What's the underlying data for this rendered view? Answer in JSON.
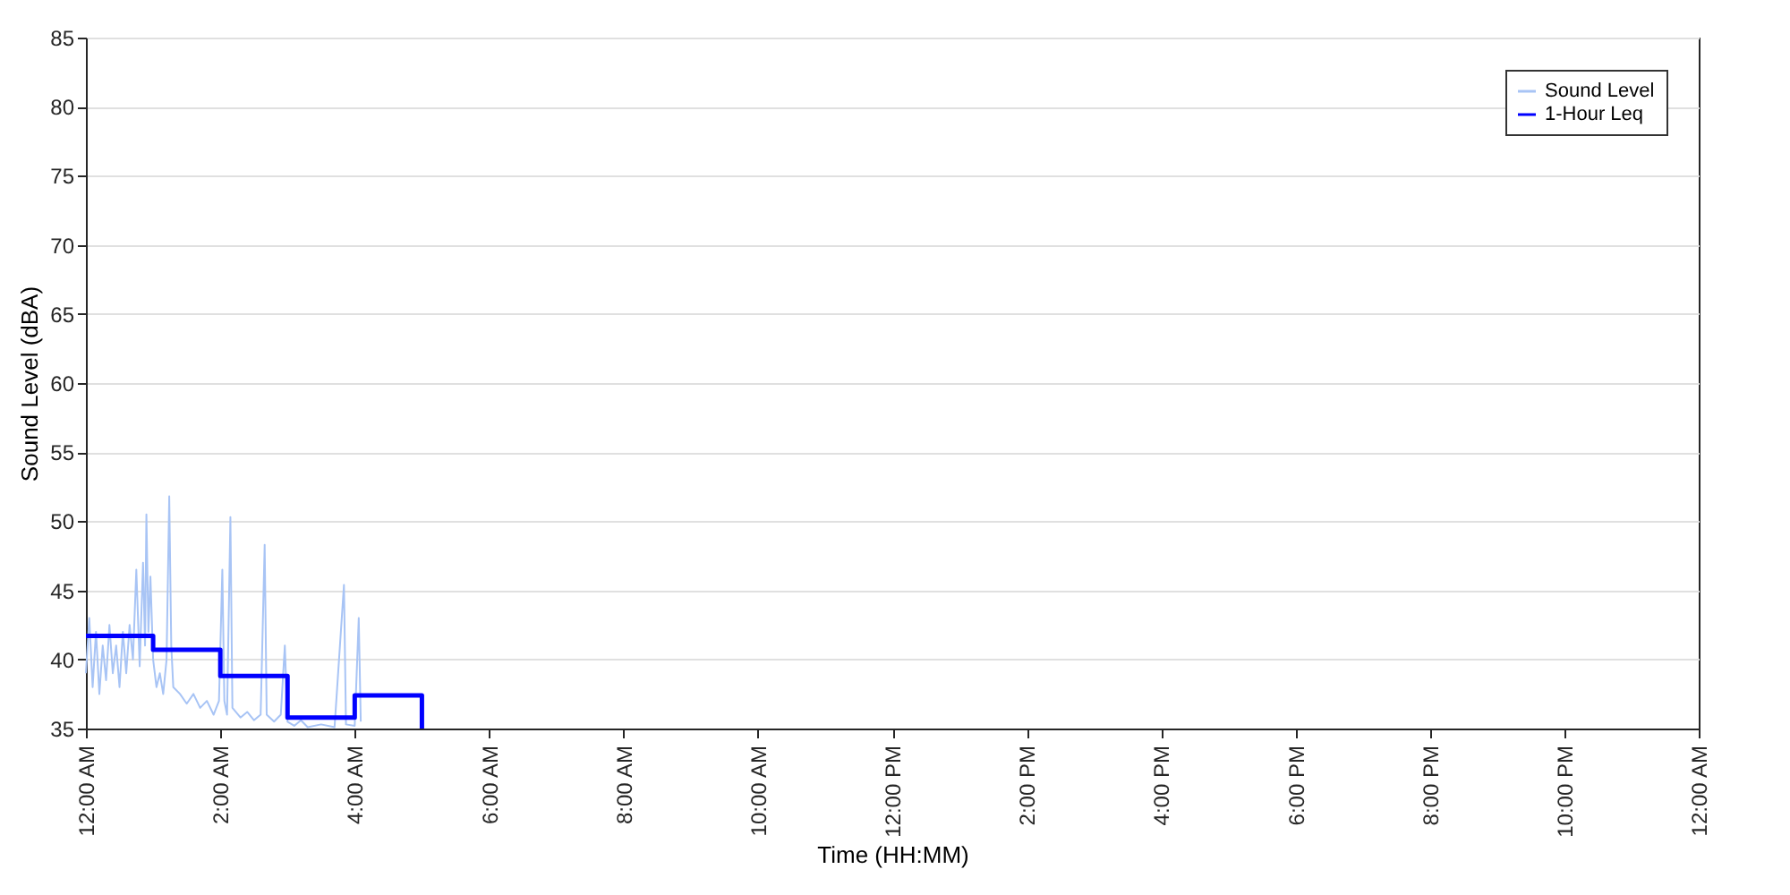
{
  "chart_data": {
    "type": "line",
    "xlabel": "Time (HH:MM)",
    "ylabel": "Sound Level (dBA)",
    "xlim": [
      0,
      24
    ],
    "ylim": [
      35,
      85
    ],
    "xticks": [
      {
        "value": 0,
        "label": "12:00 AM"
      },
      {
        "value": 2,
        "label": "2:00 AM"
      },
      {
        "value": 4,
        "label": "4:00 AM"
      },
      {
        "value": 6,
        "label": "6:00 AM"
      },
      {
        "value": 8,
        "label": "8:00 AM"
      },
      {
        "value": 10,
        "label": "10:00 AM"
      },
      {
        "value": 12,
        "label": "12:00 PM"
      },
      {
        "value": 14,
        "label": "2:00 PM"
      },
      {
        "value": 16,
        "label": "4:00 PM"
      },
      {
        "value": 18,
        "label": "6:00 PM"
      },
      {
        "value": 20,
        "label": "8:00 PM"
      },
      {
        "value": 22,
        "label": "10:00 PM"
      },
      {
        "value": 24,
        "label": "12:00 AM"
      }
    ],
    "yticks": [
      35,
      40,
      45,
      50,
      55,
      60,
      65,
      70,
      75,
      80,
      85
    ],
    "grid": "y",
    "legend": "top right",
    "line_style": "solid",
    "marker": "none",
    "series": [
      {
        "name": "Sound Level",
        "type": "line",
        "color": "#a8c4f5",
        "x": [
          0,
          0.05,
          0.1,
          0.15,
          0.2,
          0.25,
          0.3,
          0.35,
          0.4,
          0.45,
          0.5,
          0.55,
          0.6,
          0.65,
          0.7,
          0.75,
          0.8,
          0.85,
          0.88,
          0.9,
          0.93,
          0.96,
          1.0,
          1.05,
          1.1,
          1.15,
          1.2,
          1.24,
          1.27,
          1.3,
          1.4,
          1.5,
          1.6,
          1.7,
          1.8,
          1.9,
          1.98,
          2.03,
          2.06,
          2.1,
          2.15,
          2.18,
          2.3,
          2.4,
          2.5,
          2.6,
          2.66,
          2.69,
          2.8,
          2.9,
          2.96,
          3.0,
          3.1,
          3.2,
          3.3,
          3.5,
          3.7,
          3.84,
          3.87,
          4.0,
          4.06,
          4.09
        ],
        "values": [
          39,
          43,
          38,
          42,
          37.5,
          41,
          38.5,
          42.5,
          39,
          41,
          38,
          42,
          39,
          42.5,
          40,
          46.5,
          39.5,
          47,
          41,
          50.5,
          42,
          46,
          40,
          38,
          39,
          37.5,
          40,
          51.8,
          41,
          38,
          37.5,
          36.8,
          37.5,
          36.5,
          37,
          36,
          37,
          46.5,
          37,
          36,
          50.3,
          36.5,
          35.8,
          36.2,
          35.6,
          36,
          48.3,
          36,
          35.5,
          36,
          41,
          35.5,
          35.2,
          35.6,
          35.1,
          35.3,
          35.1,
          45.4,
          35.3,
          35.2,
          43,
          35.5
        ]
      },
      {
        "name": "1-Hour Leq",
        "type": "step",
        "color": "#0000ff",
        "x": [
          0,
          1,
          2,
          3,
          4,
          5,
          5
        ],
        "values": [
          41.7,
          40.7,
          38.8,
          35.8,
          37.4,
          37.4,
          35
        ]
      }
    ]
  }
}
